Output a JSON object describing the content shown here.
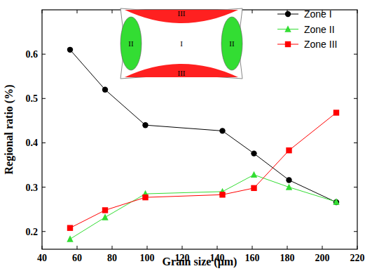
{
  "chart_data": {
    "type": "line",
    "x_label": "Grain size (μm)",
    "y_label": "Regional ratio (%)",
    "x": [
      56,
      76,
      99,
      143,
      161,
      181,
      208
    ],
    "series": [
      {
        "name": "Zone I",
        "color": "#000000",
        "marker": "circle",
        "values": [
          0.61,
          0.52,
          0.44,
          0.427,
          0.376,
          0.316,
          0.266
        ]
      },
      {
        "name": "Zone II",
        "color": "#33dd33",
        "marker": "triangle",
        "values": [
          0.183,
          0.232,
          0.285,
          0.29,
          0.328,
          0.3,
          0.267
        ]
      },
      {
        "name": "Zone III",
        "color": "#ff0000",
        "marker": "square",
        "values": [
          0.208,
          0.248,
          0.277,
          0.283,
          0.298,
          0.383,
          0.468
        ]
      }
    ],
    "xlim": [
      40,
      220
    ],
    "xticks": [
      40,
      60,
      80,
      100,
      120,
      140,
      160,
      180,
      200,
      220
    ],
    "ylim": [
      0.16,
      0.7
    ],
    "yticks": [
      0.2,
      0.3,
      0.4,
      0.5,
      0.6
    ],
    "legend": "upper right",
    "annotations": [
      "III",
      "II",
      "I",
      "II",
      "III"
    ]
  }
}
